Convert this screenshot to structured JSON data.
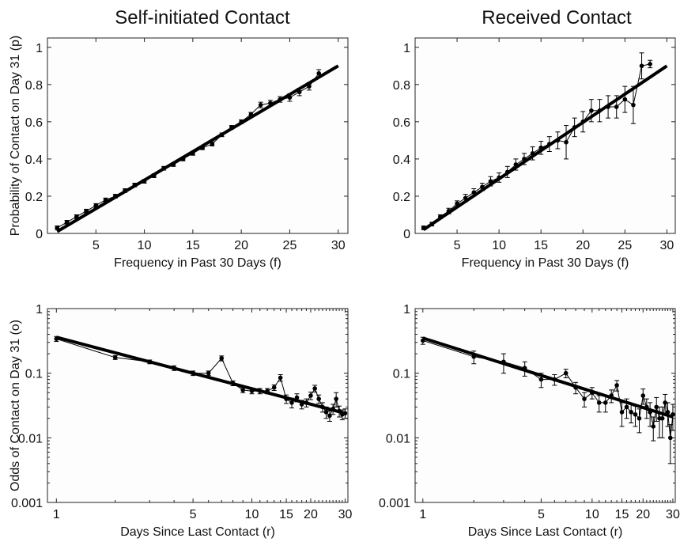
{
  "chart_data": [
    {
      "type": "line",
      "title": "Self-initiated Contact",
      "xlabel": "Frequency in Past 30 Days (f)",
      "ylabel": "Probability of Contact on Day 31 (p)",
      "xlim": [
        0,
        31
      ],
      "ylim": [
        0,
        1.05
      ],
      "xscale": "linear",
      "yscale": "linear",
      "xticks": [
        5,
        10,
        15,
        20,
        25,
        30
      ],
      "xtick_labels": [
        "5",
        "10",
        "15",
        "20",
        "25",
        "30"
      ],
      "yticks": [
        0,
        0.2,
        0.4,
        0.6,
        0.8,
        1
      ],
      "ytick_labels": [
        "0",
        "0.2",
        "0.4",
        "0.6",
        "0.8",
        "1"
      ],
      "fit": {
        "x": [
          1,
          30
        ],
        "y": [
          0.01,
          0.9
        ]
      },
      "series": [
        {
          "x": [
            1,
            2,
            3,
            4,
            5,
            6,
            7,
            8,
            9,
            10,
            11,
            12,
            13,
            14,
            15,
            16,
            17,
            18,
            19,
            20,
            21,
            22,
            23,
            24,
            25,
            26,
            27,
            28
          ],
          "y": [
            0.03,
            0.06,
            0.09,
            0.12,
            0.15,
            0.18,
            0.2,
            0.23,
            0.26,
            0.28,
            0.31,
            0.35,
            0.37,
            0.4,
            0.43,
            0.46,
            0.48,
            0.53,
            0.57,
            0.6,
            0.64,
            0.69,
            0.7,
            0.72,
            0.73,
            0.76,
            0.79,
            0.86
          ],
          "err": [
            0.01,
            0.01,
            0.01,
            0.01,
            0.01,
            0.01,
            0.01,
            0.01,
            0.01,
            0.01,
            0.01,
            0.01,
            0.01,
            0.01,
            0.01,
            0.01,
            0.01,
            0.01,
            0.01,
            0.01,
            0.01,
            0.015,
            0.015,
            0.015,
            0.02,
            0.02,
            0.02,
            0.02
          ]
        }
      ]
    },
    {
      "type": "line",
      "title": "Received Contact",
      "xlabel": "Frequency in Past 30 Days (f)",
      "ylabel": "",
      "xlim": [
        0,
        31
      ],
      "ylim": [
        0,
        1.05
      ],
      "xscale": "linear",
      "yscale": "linear",
      "xticks": [
        5,
        10,
        15,
        20,
        25,
        30
      ],
      "xtick_labels": [
        "5",
        "10",
        "15",
        "20",
        "25",
        "30"
      ],
      "yticks": [
        0,
        0.2,
        0.4,
        0.6,
        0.8,
        1
      ],
      "ytick_labels": [
        "0",
        "0.2",
        "0.4",
        "0.6",
        "0.8",
        "1"
      ],
      "fit": {
        "x": [
          1,
          30
        ],
        "y": [
          0.02,
          0.9
        ]
      },
      "series": [
        {
          "x": [
            1,
            2,
            3,
            4,
            5,
            6,
            7,
            8,
            9,
            10,
            11,
            12,
            13,
            14,
            15,
            16,
            17,
            18,
            19,
            20,
            21,
            22,
            23,
            24,
            25,
            26,
            27,
            28
          ],
          "y": [
            0.03,
            0.05,
            0.09,
            0.12,
            0.16,
            0.19,
            0.22,
            0.25,
            0.28,
            0.3,
            0.33,
            0.37,
            0.4,
            0.43,
            0.46,
            0.48,
            0.5,
            0.49,
            0.57,
            0.6,
            0.66,
            0.66,
            0.68,
            0.68,
            0.72,
            0.69,
            0.9,
            0.91
          ],
          "err": [
            0.01,
            0.01,
            0.01,
            0.015,
            0.015,
            0.02,
            0.02,
            0.02,
            0.025,
            0.025,
            0.03,
            0.03,
            0.03,
            0.035,
            0.035,
            0.04,
            0.045,
            0.09,
            0.05,
            0.055,
            0.06,
            0.06,
            0.06,
            0.06,
            0.07,
            0.1,
            0.07,
            0.02
          ]
        }
      ]
    },
    {
      "type": "line",
      "title": "",
      "xlabel": "Days Since Last Contact (r)",
      "ylabel": "Odds of Contact on Day 31 (o)",
      "xlim": [
        0.9,
        31
      ],
      "ylim": [
        0.001,
        1
      ],
      "xscale": "log",
      "yscale": "log",
      "xticks": [
        1,
        5,
        10,
        15,
        20,
        30
      ],
      "xtick_labels": [
        "1",
        "5",
        "10",
        "15",
        "20",
        "30"
      ],
      "yticks": [
        0.001,
        0.01,
        0.1,
        1
      ],
      "ytick_labels": [
        "0.001",
        "0.01",
        "0.1",
        "1"
      ],
      "fit": {
        "x": [
          1,
          30
        ],
        "y": [
          0.36,
          0.024
        ]
      },
      "series": [
        {
          "x": [
            1,
            2,
            3,
            4,
            5,
            6,
            7,
            8,
            9,
            10,
            11,
            12,
            13,
            14,
            15,
            16,
            17,
            18,
            19,
            20,
            21,
            22,
            23,
            24,
            25,
            26,
            27,
            28,
            29,
            30
          ],
          "y": [
            0.34,
            0.175,
            0.15,
            0.12,
            0.1,
            0.1,
            0.17,
            0.07,
            0.055,
            0.053,
            0.053,
            0.053,
            0.06,
            0.085,
            0.04,
            0.035,
            0.042,
            0.033,
            0.035,
            0.045,
            0.058,
            0.04,
            0.03,
            0.025,
            0.022,
            0.028,
            0.04,
            0.026,
            0.023,
            0.024
          ],
          "err": [
            0.03,
            0.012,
            0.01,
            0.01,
            0.008,
            0.008,
            0.015,
            0.006,
            0.005,
            0.005,
            0.005,
            0.005,
            0.006,
            0.01,
            0.006,
            0.006,
            0.006,
            0.005,
            0.005,
            0.006,
            0.007,
            0.006,
            0.005,
            0.005,
            0.004,
            0.005,
            0.01,
            0.005,
            0.004,
            0.004
          ]
        }
      ]
    },
    {
      "type": "line",
      "title": "",
      "xlabel": "Days Since Last Contact (r)",
      "ylabel": "",
      "xlim": [
        0.9,
        31
      ],
      "ylim": [
        0.001,
        1
      ],
      "xscale": "log",
      "yscale": "log",
      "xticks": [
        1,
        5,
        10,
        15,
        20,
        30
      ],
      "xtick_labels": [
        "1",
        "5",
        "10",
        "15",
        "20",
        "30"
      ],
      "yticks": [
        0.001,
        0.01,
        0.1,
        1
      ],
      "ytick_labels": [
        "0.001",
        "0.01",
        "0.1",
        "1"
      ],
      "fit": {
        "x": [
          1,
          30
        ],
        "y": [
          0.35,
          0.021
        ]
      },
      "series": [
        {
          "x": [
            1,
            2,
            3,
            4,
            5,
            6,
            7,
            8,
            9,
            10,
            11,
            12,
            13,
            14,
            15,
            16,
            17,
            18,
            19,
            20,
            21,
            22,
            23,
            24,
            25,
            26,
            27,
            28,
            29,
            30
          ],
          "y": [
            0.32,
            0.18,
            0.15,
            0.12,
            0.08,
            0.08,
            0.1,
            0.06,
            0.04,
            0.05,
            0.035,
            0.035,
            0.045,
            0.065,
            0.025,
            0.03,
            0.025,
            0.023,
            0.02,
            0.045,
            0.03,
            0.025,
            0.015,
            0.03,
            0.02,
            0.02,
            0.035,
            0.025,
            0.01,
            0.023
          ],
          "err": [
            0.04,
            0.04,
            0.05,
            0.03,
            0.02,
            0.015,
            0.015,
            0.012,
            0.01,
            0.01,
            0.01,
            0.01,
            0.01,
            0.012,
            0.01,
            0.01,
            0.008,
            0.008,
            0.008,
            0.012,
            0.01,
            0.01,
            0.006,
            0.012,
            0.01,
            0.01,
            0.012,
            0.01,
            0.006,
            0.01
          ]
        }
      ]
    }
  ]
}
